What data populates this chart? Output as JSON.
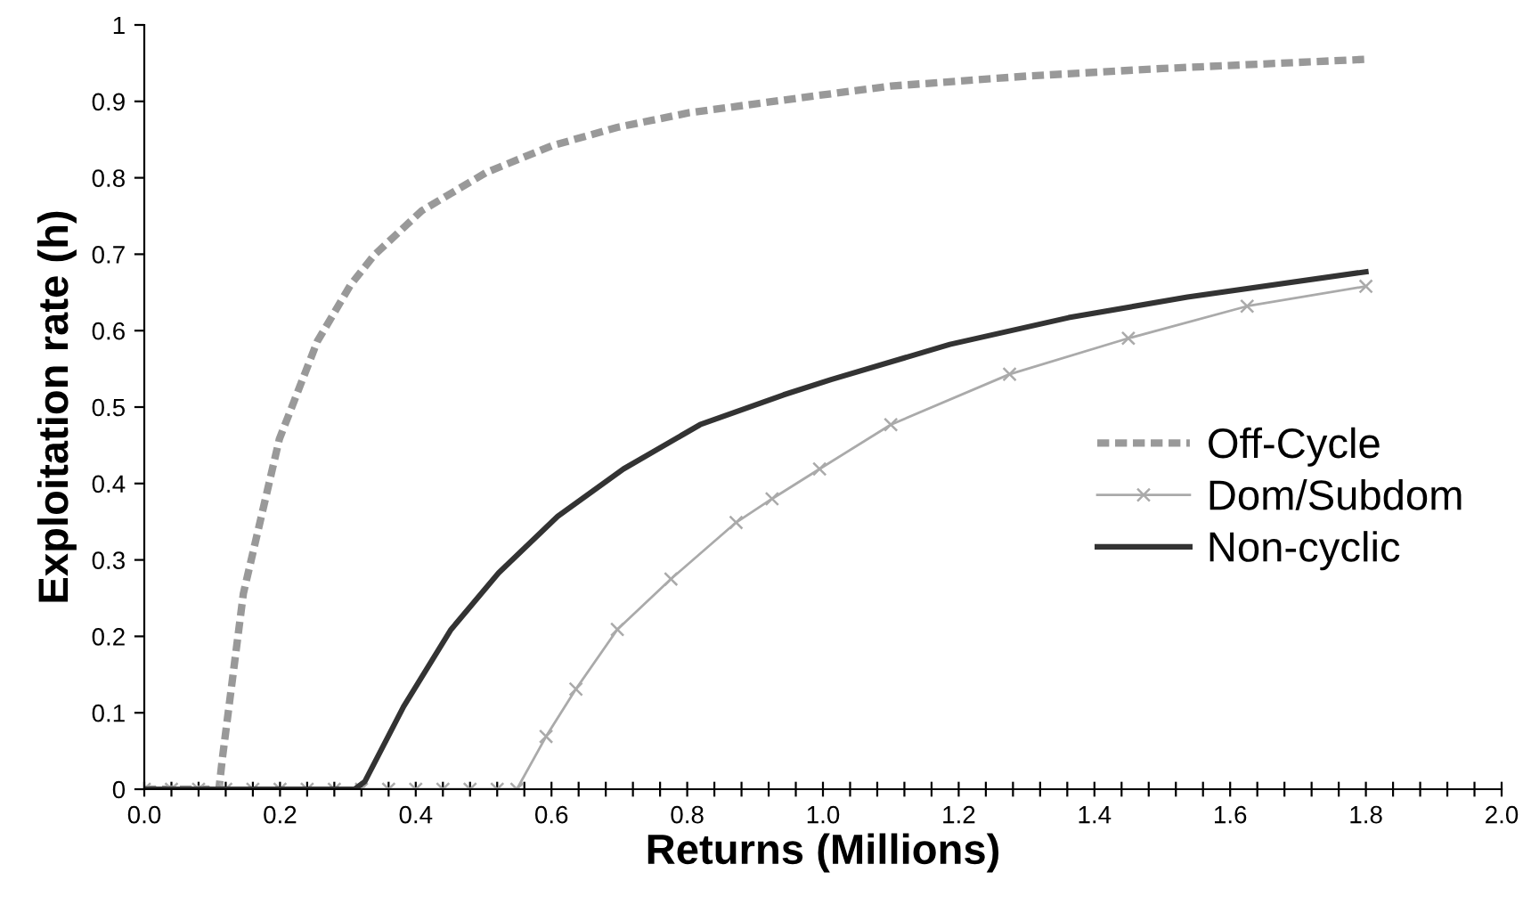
{
  "chart_data": {
    "type": "line",
    "xlabel": "Returns (Millions)",
    "ylabel": "Exploitation rate (h)",
    "xlim": [
      0,
      2.0
    ],
    "ylim": [
      0,
      1
    ],
    "xticks": [
      {
        "value": 0,
        "label": "0.0"
      },
      {
        "value": 0.04,
        "label": null
      },
      {
        "value": 0.08,
        "label": null
      },
      {
        "value": 0.12,
        "label": null
      },
      {
        "value": 0.16,
        "label": null
      },
      {
        "value": 0.2,
        "label": "0.2"
      },
      {
        "value": 0.24,
        "label": null
      },
      {
        "value": 0.28,
        "label": null
      },
      {
        "value": 0.32,
        "label": null
      },
      {
        "value": 0.36,
        "label": null
      },
      {
        "value": 0.4,
        "label": "0.4"
      },
      {
        "value": 0.44,
        "label": null
      },
      {
        "value": 0.48,
        "label": null
      },
      {
        "value": 0.52,
        "label": null
      },
      {
        "value": 0.56,
        "label": null
      },
      {
        "value": 0.6,
        "label": "0.6"
      },
      {
        "value": 0.64,
        "label": null
      },
      {
        "value": 0.68,
        "label": null
      },
      {
        "value": 0.72,
        "label": null
      },
      {
        "value": 0.76,
        "label": null
      },
      {
        "value": 0.8,
        "label": "0.8"
      },
      {
        "value": 0.84,
        "label": null
      },
      {
        "value": 0.88,
        "label": null
      },
      {
        "value": 0.92,
        "label": null
      },
      {
        "value": 0.96,
        "label": null
      },
      {
        "value": 1.0,
        "label": "1.0"
      },
      {
        "value": 1.04,
        "label": null
      },
      {
        "value": 1.08,
        "label": null
      },
      {
        "value": 1.12,
        "label": null
      },
      {
        "value": 1.16,
        "label": null
      },
      {
        "value": 1.2,
        "label": "1.2"
      },
      {
        "value": 1.24,
        "label": null
      },
      {
        "value": 1.28,
        "label": null
      },
      {
        "value": 1.32,
        "label": null
      },
      {
        "value": 1.36,
        "label": null
      },
      {
        "value": 1.4,
        "label": "1.4"
      },
      {
        "value": 1.44,
        "label": null
      },
      {
        "value": 1.48,
        "label": null
      },
      {
        "value": 1.52,
        "label": null
      },
      {
        "value": 1.56,
        "label": null
      },
      {
        "value": 1.6,
        "label": "1.6"
      },
      {
        "value": 1.64,
        "label": null
      },
      {
        "value": 1.68,
        "label": null
      },
      {
        "value": 1.72,
        "label": null
      },
      {
        "value": 1.76,
        "label": null
      },
      {
        "value": 1.8,
        "label": "1.8"
      },
      {
        "value": 1.84,
        "label": null
      },
      {
        "value": 1.88,
        "label": null
      },
      {
        "value": 1.92,
        "label": null
      },
      {
        "value": 1.96,
        "label": null
      },
      {
        "value": 2.0,
        "label": "2.0"
      }
    ],
    "yticks": [
      0,
      0.1,
      0.2,
      0.3,
      0.4,
      0.5,
      0.6,
      0.7,
      0.8,
      0.9,
      1
    ],
    "grid": false,
    "legend": "right",
    "series": [
      {
        "name": "Off-Cycle",
        "color": "#999999",
        "line_style": "dashed",
        "marker": "none",
        "x": [
          0,
          0.05,
          0.11,
          0.115,
          0.146,
          0.199,
          0.255,
          0.304,
          0.339,
          0.409,
          0.504,
          0.601,
          0.697,
          0.802,
          0.995,
          1.1,
          1.3,
          1.5,
          1.8
        ],
        "values": [
          0,
          0,
          0,
          0.04,
          0.256,
          0.458,
          0.586,
          0.66,
          0.699,
          0.757,
          0.807,
          0.842,
          0.866,
          0.885,
          0.908,
          0.92,
          0.933,
          0.943,
          0.955
        ]
      },
      {
        "name": "Dom/Subdom",
        "color": "#aaaaaa",
        "line_style": "solid",
        "marker": "cross",
        "x": [
          0,
          0.04,
          0.08,
          0.12,
          0.16,
          0.2,
          0.24,
          0.28,
          0.32,
          0.36,
          0.4,
          0.44,
          0.48,
          0.52,
          0.549,
          0.592,
          0.636,
          0.697,
          0.776,
          0.872,
          0.925,
          0.995,
          1.1,
          1.275,
          1.45,
          1.625,
          1.8
        ],
        "values": [
          0,
          0,
          0,
          0,
          0,
          0,
          0,
          0,
          0,
          0,
          0,
          0,
          0,
          0,
          0,
          0.069,
          0.131,
          0.209,
          0.275,
          0.349,
          0.38,
          0.419,
          0.477,
          0.543,
          0.59,
          0.632,
          0.658
        ]
      },
      {
        "name": "Non-cyclic",
        "color": "#333333",
        "line_style": "solid",
        "marker": "none",
        "x": [
          0,
          0.1,
          0.2,
          0.31,
          0.325,
          0.382,
          0.452,
          0.522,
          0.609,
          0.706,
          0.819,
          0.942,
          1.012,
          1.187,
          1.362,
          1.537,
          1.8
        ],
        "values": [
          0,
          0,
          0,
          0,
          0.01,
          0.108,
          0.209,
          0.283,
          0.357,
          0.419,
          0.477,
          0.516,
          0.536,
          0.582,
          0.617,
          0.644,
          0.677
        ]
      }
    ]
  }
}
